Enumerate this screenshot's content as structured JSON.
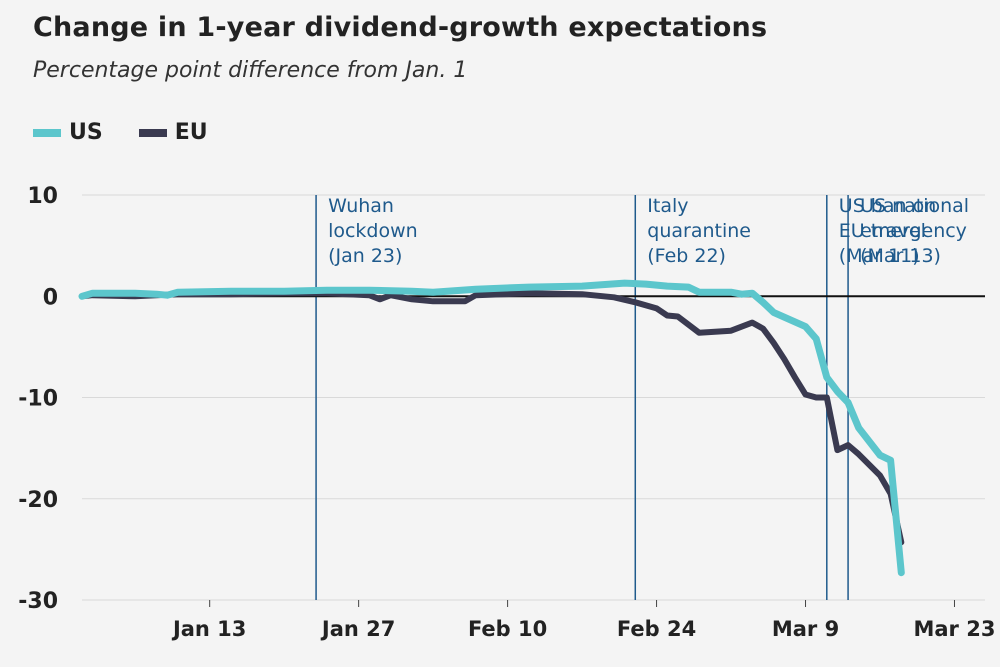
{
  "chart_data": {
    "type": "line",
    "title": "Change in 1-year dividend-growth expectations",
    "subtitle": "Percentage point difference from Jan. 1",
    "ylim": [
      -30,
      10
    ],
    "yticks": [
      10,
      0,
      -10,
      -20,
      -30
    ],
    "ytick_labels": [
      "10",
      "0",
      "-10",
      "-20",
      "-30"
    ],
    "xlim": [
      "2020-01-01",
      "2020-03-23"
    ],
    "xticks": [
      "2020-01-13",
      "2020-01-27",
      "2020-02-10",
      "2020-02-24",
      "2020-03-09",
      "2020-03-23"
    ],
    "xtick_labels": [
      "Jan 13",
      "Jan 27",
      "Feb 10",
      "Feb 24",
      "Mar 9",
      "Mar 23"
    ],
    "legend": [
      "US",
      "EU"
    ],
    "colors": {
      "US": "#5cc6cc",
      "EU": "#3a3a50",
      "annotation": "#1f5a8c",
      "zero_line": "#111111",
      "grid": "#d9d9d9"
    },
    "annotations": [
      {
        "date": "2020-01-23",
        "lines": [
          "Wuhan",
          "lockdown",
          "(Jan 23)"
        ]
      },
      {
        "date": "2020-02-22",
        "lines": [
          "Italy",
          "quarantine",
          "(Feb 22)"
        ]
      },
      {
        "date": "2020-03-11",
        "lines": [
          "US ban on",
          "EU travel",
          "(Mar 11)"
        ]
      },
      {
        "date": "2020-03-13",
        "lines": [
          "US national",
          "emergency",
          "(Mar 13)"
        ]
      }
    ],
    "series": [
      {
        "name": "US",
        "points": [
          [
            "2020-01-01",
            0
          ],
          [
            "2020-01-02",
            0.3
          ],
          [
            "2020-01-06",
            0.3
          ],
          [
            "2020-01-08",
            0.2
          ],
          [
            "2020-01-09",
            0.1
          ],
          [
            "2020-01-10",
            0.4
          ],
          [
            "2020-01-15",
            0.5
          ],
          [
            "2020-01-20",
            0.5
          ],
          [
            "2020-01-24",
            0.6
          ],
          [
            "2020-01-28",
            0.6
          ],
          [
            "2020-02-01",
            0.5
          ],
          [
            "2020-02-03",
            0.4
          ],
          [
            "2020-02-07",
            0.7
          ],
          [
            "2020-02-12",
            0.9
          ],
          [
            "2020-02-17",
            1.0
          ],
          [
            "2020-02-21",
            1.3
          ],
          [
            "2020-02-23",
            1.2
          ],
          [
            "2020-02-25",
            1.0
          ],
          [
            "2020-02-27",
            0.9
          ],
          [
            "2020-02-28",
            0.4
          ],
          [
            "2020-03-02",
            0.4
          ],
          [
            "2020-03-03",
            0.2
          ],
          [
            "2020-03-04",
            0.3
          ],
          [
            "2020-03-05",
            -0.6
          ],
          [
            "2020-03-06",
            -1.6
          ],
          [
            "2020-03-09",
            -3.0
          ],
          [
            "2020-03-10",
            -4.2
          ],
          [
            "2020-03-11",
            -8.0
          ],
          [
            "2020-03-12",
            -9.4
          ],
          [
            "2020-03-13",
            -10.5
          ],
          [
            "2020-03-14",
            -13.0
          ],
          [
            "2020-03-16",
            -15.7
          ],
          [
            "2020-03-17",
            -16.2
          ],
          [
            "2020-03-18",
            -27.3
          ]
        ]
      },
      {
        "name": "EU",
        "points": [
          [
            "2020-01-01",
            0
          ],
          [
            "2020-01-02",
            0.1
          ],
          [
            "2020-01-06",
            0
          ],
          [
            "2020-01-10",
            0.2
          ],
          [
            "2020-01-15",
            0.2
          ],
          [
            "2020-01-20",
            0.3
          ],
          [
            "2020-01-24",
            0.3
          ],
          [
            "2020-01-28",
            0.1
          ],
          [
            "2020-01-29",
            -0.3
          ],
          [
            "2020-01-30",
            0.1
          ],
          [
            "2020-02-01",
            -0.3
          ],
          [
            "2020-02-03",
            -0.5
          ],
          [
            "2020-02-06",
            -0.5
          ],
          [
            "2020-02-07",
            0.1
          ],
          [
            "2020-02-12",
            0.3
          ],
          [
            "2020-02-17",
            0.2
          ],
          [
            "2020-02-20",
            -0.1
          ],
          [
            "2020-02-22",
            -0.6
          ],
          [
            "2020-02-24",
            -1.2
          ],
          [
            "2020-02-25",
            -1.9
          ],
          [
            "2020-02-26",
            -2.0
          ],
          [
            "2020-02-28",
            -3.6
          ],
          [
            "2020-03-02",
            -3.4
          ],
          [
            "2020-03-04",
            -2.6
          ],
          [
            "2020-03-05",
            -3.2
          ],
          [
            "2020-03-06",
            -4.6
          ],
          [
            "2020-03-07",
            -6.2
          ],
          [
            "2020-03-08",
            -8.0
          ],
          [
            "2020-03-09",
            -9.7
          ],
          [
            "2020-03-10",
            -10.0
          ],
          [
            "2020-03-11",
            -10.0
          ],
          [
            "2020-03-12",
            -15.2
          ],
          [
            "2020-03-13",
            -14.7
          ],
          [
            "2020-03-14",
            -15.6
          ],
          [
            "2020-03-16",
            -17.7
          ],
          [
            "2020-03-17",
            -19.5
          ],
          [
            "2020-03-18",
            -24.3
          ]
        ]
      }
    ]
  }
}
